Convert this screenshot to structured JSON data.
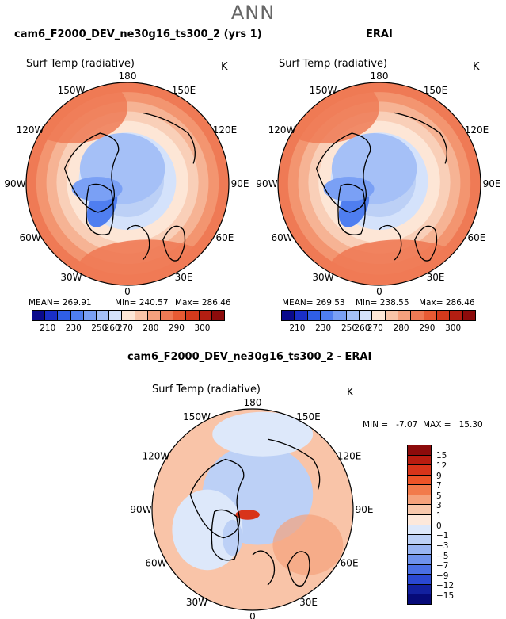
{
  "title": "ANN",
  "panels": [
    {
      "title": "cam6_F2000_DEV_ne30g16_ts300_2 (yrs 1)",
      "variable": "Surf Temp (radiative)",
      "units": "K",
      "lon_labels": [
        "180",
        "150E",
        "120E",
        "90E",
        "60E",
        "30E",
        "0",
        "30W",
        "60W",
        "90W",
        "120W",
        "150W"
      ],
      "stats": {
        "mean": "MEAN= 269.91",
        "min": "Min= 240.57",
        "max": "Max= 286.46"
      }
    },
    {
      "title": "ERAI",
      "variable": "Surf Temp (radiative)",
      "units": "K",
      "lon_labels": [
        "180",
        "150E",
        "120E",
        "90E",
        "60E",
        "30E",
        "0",
        "30W",
        "60W",
        "90W",
        "120W",
        "150W"
      ],
      "stats": {
        "mean": "MEAN= 269.53",
        "min": "Min= 238.55",
        "max": "Max= 286.46"
      }
    }
  ],
  "abs_colorbar": {
    "labels": [
      "210",
      "230",
      "250",
      "260",
      "270",
      "280",
      "290",
      "300"
    ],
    "colors": [
      "#0a0a8c",
      "#1a2fc8",
      "#2f5ee6",
      "#4f7ef0",
      "#7aa0f5",
      "#a5c0f7",
      "#d4e2fb",
      "#fde6d6",
      "#f9c4a8",
      "#f5a07d",
      "#ef7a55",
      "#e85a33",
      "#d43a1c",
      "#b21e12",
      "#8c0b0b"
    ]
  },
  "diff_panel": {
    "title": "cam6_F2000_DEV_ne30g16_ts300_2 - ERAI",
    "variable": "Surf Temp (radiative)",
    "units": "K",
    "stats": "MIN =   -7.07  MAX =   15.30",
    "lon_labels": [
      "180",
      "150E",
      "120E",
      "90E",
      "60E",
      "30E",
      "0",
      "30W",
      "60W",
      "90W",
      "120W",
      "150W"
    ]
  },
  "diff_colorbar": {
    "labels": [
      "15",
      "12",
      "9",
      "7",
      "5",
      "3",
      "1",
      "0",
      "−1",
      "−3",
      "−5",
      "−7",
      "−9",
      "−12",
      "−15"
    ],
    "colors": [
      "#8c0b0b",
      "#b81c10",
      "#d8341a",
      "#ee5428",
      "#f27a4b",
      "#f5a27c",
      "#f8c8ac",
      "#fde8da",
      "#dde8fa",
      "#bcd0f6",
      "#98b4f2",
      "#6f92ec",
      "#4a6fe4",
      "#2a48d2",
      "#12209e",
      "#060a78"
    ]
  }
}
